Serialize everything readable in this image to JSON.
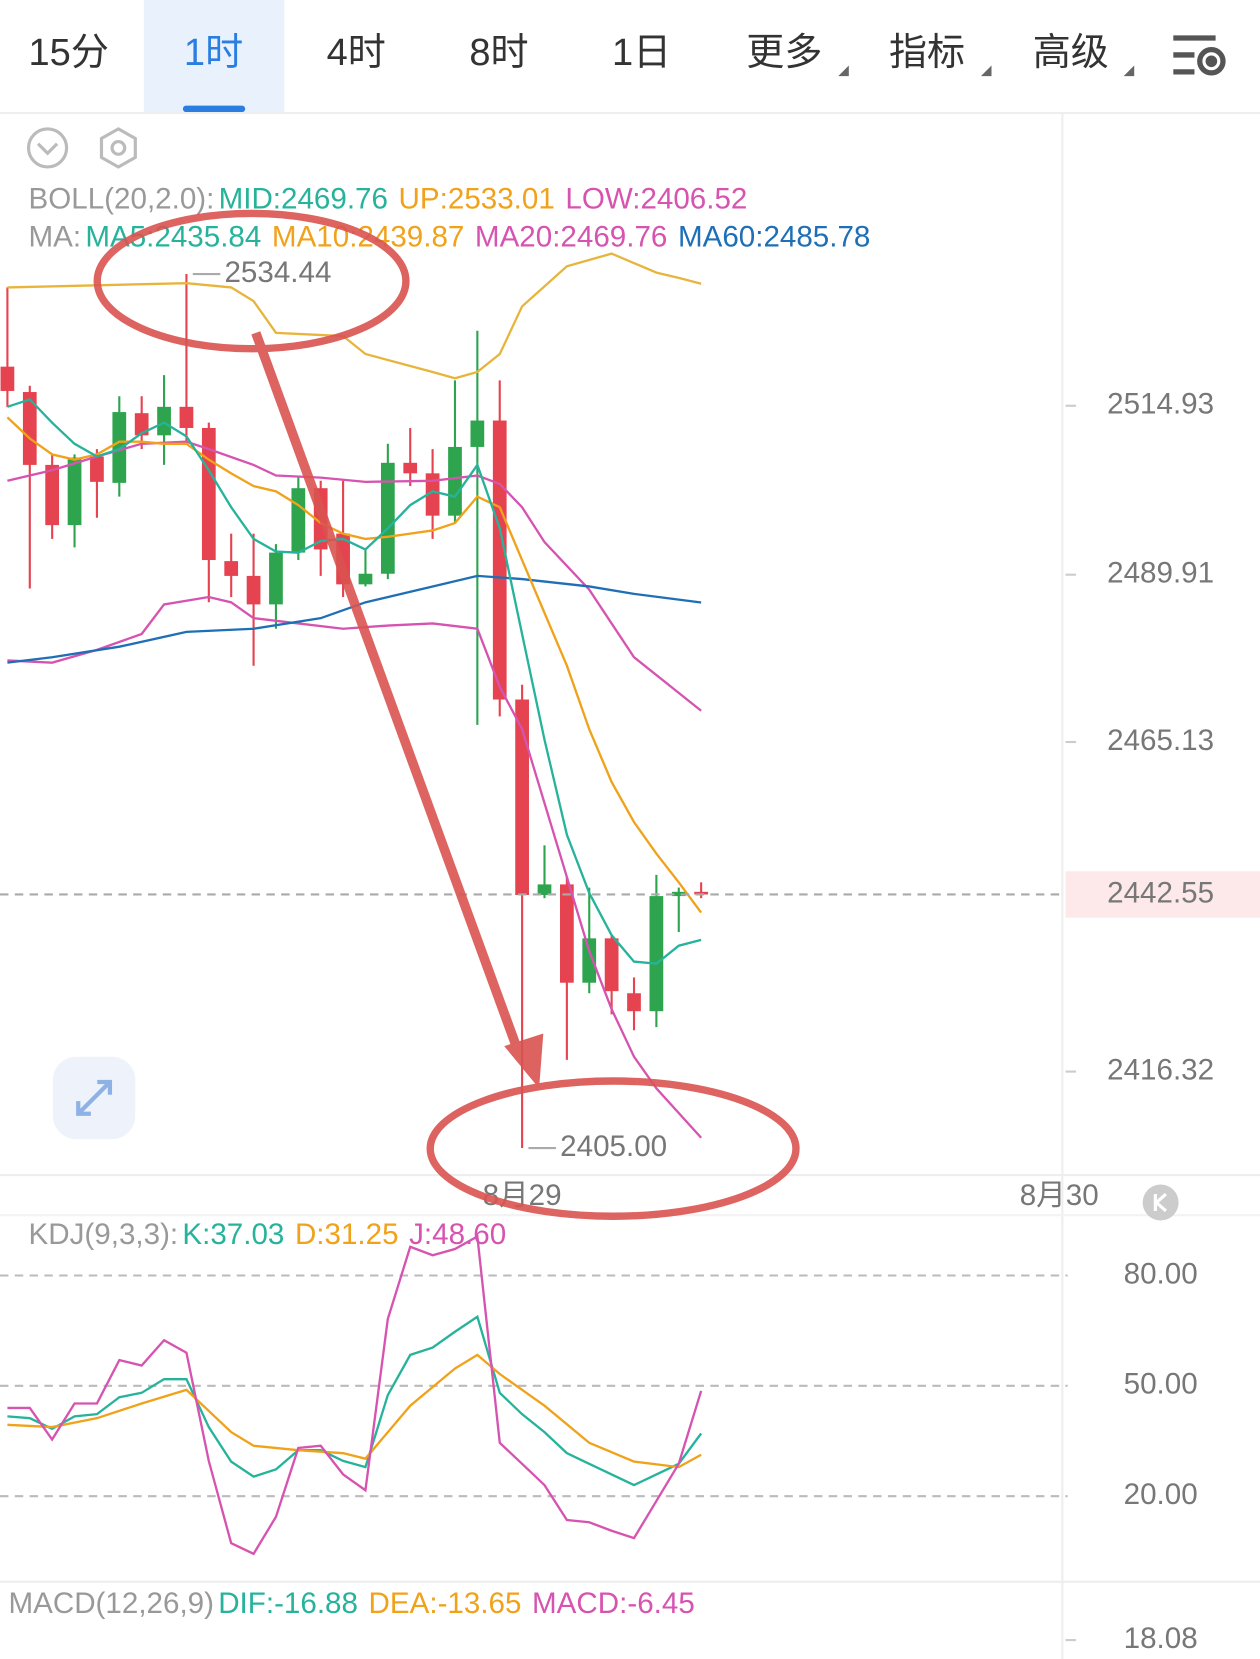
{
  "tabs": [
    {
      "label": "15分"
    },
    {
      "label": "1时",
      "active": true
    },
    {
      "label": "4时"
    },
    {
      "label": "8时"
    },
    {
      "label": "1日"
    },
    {
      "label": "更多"
    },
    {
      "label": "指标"
    },
    {
      "label": "高级"
    }
  ],
  "chart_data": [
    {
      "type": "candlestick",
      "legends": [
        {
          "label": "BOLL(20,2.0):",
          "items": [
            {
              "text": "MID:2469.76",
              "color": "#27b39b"
            },
            {
              "text": "UP:2533.01",
              "color": "#f0a21a"
            },
            {
              "text": "LOW:2406.52",
              "color": "#d653b0"
            }
          ]
        },
        {
          "label": "MA:",
          "items": [
            {
              "text": "MA5:2435.84",
              "color": "#27b39b"
            },
            {
              "text": "MA10:2439.87",
              "color": "#f0a21a"
            },
            {
              "text": "MA20:2469.76",
              "color": "#d653b0"
            },
            {
              "text": "MA60:2485.78",
              "color": "#1e6fb5"
            }
          ]
        }
      ],
      "up_color": "#2ea44f",
      "down_color": "#e5434f",
      "open": [
        2520.72,
        2516.96,
        2506.17,
        2497.25,
        2507.42,
        2503.51,
        2513.83,
        2510.55,
        2514.77,
        2511.64,
        2491.92,
        2489.73,
        2485.51,
        2493.18,
        2502.72,
        2495.99,
        2488.48,
        2490.05,
        2506.48,
        2504.92,
        2498.65,
        2508.83,
        2512.74,
        2471.42,
        2442.47,
        2444.04,
        2429.48,
        2436.05,
        2427.92,
        2425.26,
        2442.31,
        2442.94
      ],
      "close": [
        2517.12,
        2506.17,
        2497.25,
        2507.26,
        2503.66,
        2513.99,
        2510.55,
        2514.77,
        2511.64,
        2492.08,
        2489.73,
        2485.51,
        2493.18,
        2502.72,
        2493.65,
        2488.48,
        2490.05,
        2506.48,
        2504.92,
        2498.65,
        2508.83,
        2512.74,
        2471.42,
        2442.47,
        2444.04,
        2429.48,
        2436.05,
        2428.23,
        2425.26,
        2442.31,
        2442.94,
        2442.55
      ],
      "high": [
        2532.46,
        2517.9,
        2507.73,
        2507.73,
        2508.51,
        2516.34,
        2516.34,
        2519.47,
        2534.44,
        2512.43,
        2495.99,
        2495.99,
        2494.43,
        2504.6,
        2503.82,
        2503.82,
        2493.65,
        2509.3,
        2511.64,
        2508.51,
        2518.69,
        2526.04,
        2518.69,
        2473.61,
        2449.83,
        2445.13,
        2443.57,
        2436.52,
        2430.26,
        2445.45,
        2443.57,
        2444.35
      ],
      "low": [
        2514.77,
        2487.86,
        2495.21,
        2493.96,
        2498.34,
        2501.47,
        2508.51,
        2506.17,
        2509.3,
        2485.82,
        2486.6,
        2476.43,
        2481.91,
        2492.08,
        2489.73,
        2486.6,
        2488.17,
        2489.26,
        2503.04,
        2495.21,
        2497.56,
        2467.67,
        2468.92,
        2405.0,
        2442.0,
        2418.06,
        2427.92,
        2424.79,
        2422.44,
        2422.91,
        2436.99,
        2442.0
      ],
      "series": [
        {
          "color": "#e8b53c",
          "x": [
            0,
            4,
            8,
            10,
            11,
            12,
            15,
            16,
            19,
            20,
            21,
            22,
            23,
            25,
            27,
            29,
            30,
            31
          ],
          "values": [
            2532.46,
            2532.77,
            2533.08,
            2532.46,
            2530.42,
            2525.73,
            2525.26,
            2522.6,
            2519.94,
            2519.0,
            2519.94,
            2522.6,
            2529.64,
            2535.59,
            2537.47,
            2534.65,
            2533.87,
            2533.01
          ]
        },
        {
          "color": "#d653b0",
          "x": [
            0,
            2,
            4,
            6,
            8,
            9,
            11,
            12,
            14,
            16,
            19,
            21,
            22,
            23,
            24,
            26,
            28,
            31
          ],
          "values": [
            2503.82,
            2505.38,
            2507.42,
            2509.3,
            2509.61,
            2508.51,
            2506.17,
            2504.6,
            2504.29,
            2503.66,
            2503.82,
            2504.6,
            2503.35,
            2499.91,
            2494.74,
            2487.7,
            2477.68,
            2469.76
          ]
        },
        {
          "color": "#d653b0",
          "x": [
            0,
            2,
            4,
            6,
            7,
            9,
            10,
            11,
            13,
            15,
            17,
            19,
            21,
            22,
            23,
            24,
            25,
            26,
            27,
            28,
            29,
            31
          ],
          "values": [
            2477.21,
            2476.89,
            2478.77,
            2481.13,
            2485.51,
            2486.6,
            2485.82,
            2483.47,
            2482.69,
            2481.91,
            2482.38,
            2482.69,
            2481.91,
            2473.3,
            2467.04,
            2456.09,
            2445.13,
            2434.17,
            2425.57,
            2418.53,
            2413.83,
            2406.52
          ]
        },
        {
          "color": "#1e6fb5",
          "x": [
            0,
            2,
            5,
            8,
            11,
            14,
            16,
            19,
            21,
            23,
            26,
            28,
            31
          ],
          "values": [
            2476.89,
            2477.68,
            2479.25,
            2481.44,
            2481.91,
            2483.47,
            2485.82,
            2488.17,
            2489.73,
            2489.26,
            2488.17,
            2487.07,
            2485.78
          ]
        },
        {
          "color": "#f0a21a",
          "values": [
            2513.21,
            2510.08,
            2507.73,
            2506.95,
            2507.73,
            2509.61,
            2509.61,
            2509.3,
            2509.3,
            2506.95,
            2504.91,
            2503.04,
            2502.25,
            2500.22,
            2497.56,
            2495.99,
            2495.21,
            2495.52,
            2495.99,
            2496.46,
            2497.56,
            2501.47,
            2499.91,
            2492.08,
            2484.26,
            2476.43,
            2467.04,
            2459.22,
            2453.27,
            2448.58,
            2444.35,
            2439.87
          ]
        },
        {
          "color": "#27b39b",
          "values": [
            2514.77,
            2515.87,
            2512.43,
            2509.3,
            2507.42,
            2508.51,
            2510.86,
            2512.43,
            2510.39,
            2505.38,
            2499.91,
            2495.21,
            2493.33,
            2493.18,
            2494.9,
            2495.21,
            2493.65,
            2496.78,
            2500.22,
            2502.25,
            2501.47,
            2506.17,
            2496.78,
            2481.13,
            2465.48,
            2451.39,
            2442.78,
            2436.52,
            2432.61,
            2432.3,
            2434.96,
            2435.84
          ]
        }
      ],
      "max_label": "2534.44",
      "min_label": "2405.00",
      "last_price": 2442.55,
      "xlim": [
        -0.331,
        47.14
      ],
      "xticks": [
        {
          "value": 23,
          "label": "8月29"
        },
        {
          "value": 47,
          "label": "8月30"
        }
      ],
      "ylim": [
        2401.31,
        2558.12
      ],
      "yticks": [
        2416.32,
        2465.13,
        2489.91,
        2514.93
      ]
    },
    {
      "type": "line",
      "legends": [
        {
          "label": "KDJ(9,3,3):",
          "items": [
            {
              "text": "K:37.03",
              "color": "#27b39b"
            },
            {
              "text": "D:31.25",
              "color": "#f0a21a"
            },
            {
              "text": "J:48.60",
              "color": "#d653b0"
            }
          ]
        }
      ],
      "series": [
        {
          "color": "#27b39b",
          "values": [
            41.7,
            41.2,
            38.3,
            41.7,
            42.3,
            46.9,
            48.1,
            51.8,
            51.8,
            38.8,
            29.4,
            25.3,
            27.3,
            32.5,
            32.5,
            29.6,
            27.9,
            47.5,
            58.4,
            60.4,
            64.7,
            68.8,
            48.1,
            42.3,
            37.4,
            31.7,
            28.8,
            25.9,
            23.0,
            25.9,
            28.8,
            37.03
          ]
        },
        {
          "color": "#f0a21a",
          "x": [
            0,
            2,
            4,
            6,
            8,
            10,
            11,
            13,
            15,
            16,
            18,
            20,
            21,
            22,
            24,
            26,
            28,
            30,
            31
          ],
          "values": [
            39.4,
            38.8,
            41.2,
            45.2,
            48.9,
            37.4,
            33.7,
            32.5,
            31.7,
            30.2,
            44.6,
            54.7,
            58.4,
            53.2,
            44.6,
            34.5,
            29.4,
            27.9,
            31.25
          ]
        },
        {
          "color": "#d653b0",
          "values": [
            44.0,
            44.0,
            35.4,
            45.2,
            45.2,
            57.0,
            55.5,
            62.4,
            59.0,
            29.6,
            7.2,
            4.3,
            14.4,
            33.1,
            33.7,
            25.9,
            21.6,
            68.2,
            87.8,
            85.5,
            87.2,
            90.6,
            34.5,
            28.8,
            23.0,
            13.5,
            12.9,
            10.6,
            8.6,
            18.7,
            28.8,
            48.6
          ]
        }
      ],
      "xlim": [
        -0.331,
        47.14
      ],
      "ylim": [
        -3.31,
        96.4
      ],
      "yticks": [
        {
          "value": 20,
          "label": "20.00"
        },
        {
          "value": 50,
          "label": "50.00"
        },
        {
          "value": 80,
          "label": "80.00"
        }
      ],
      "grid": true
    },
    {
      "type": "bar",
      "legends": [
        {
          "label": "MACD(12,26,9)",
          "items": [
            {
              "text": "DIF:-16.88",
              "color": "#27b39b"
            },
            {
              "text": "DEA:-13.65",
              "color": "#f0a21a"
            },
            {
              "text": "MACD:-6.45",
              "color": "#d653b0"
            }
          ]
        }
      ],
      "ylim": [
        17,
        21.6
      ],
      "yticks": [
        18.08
      ]
    }
  ]
}
